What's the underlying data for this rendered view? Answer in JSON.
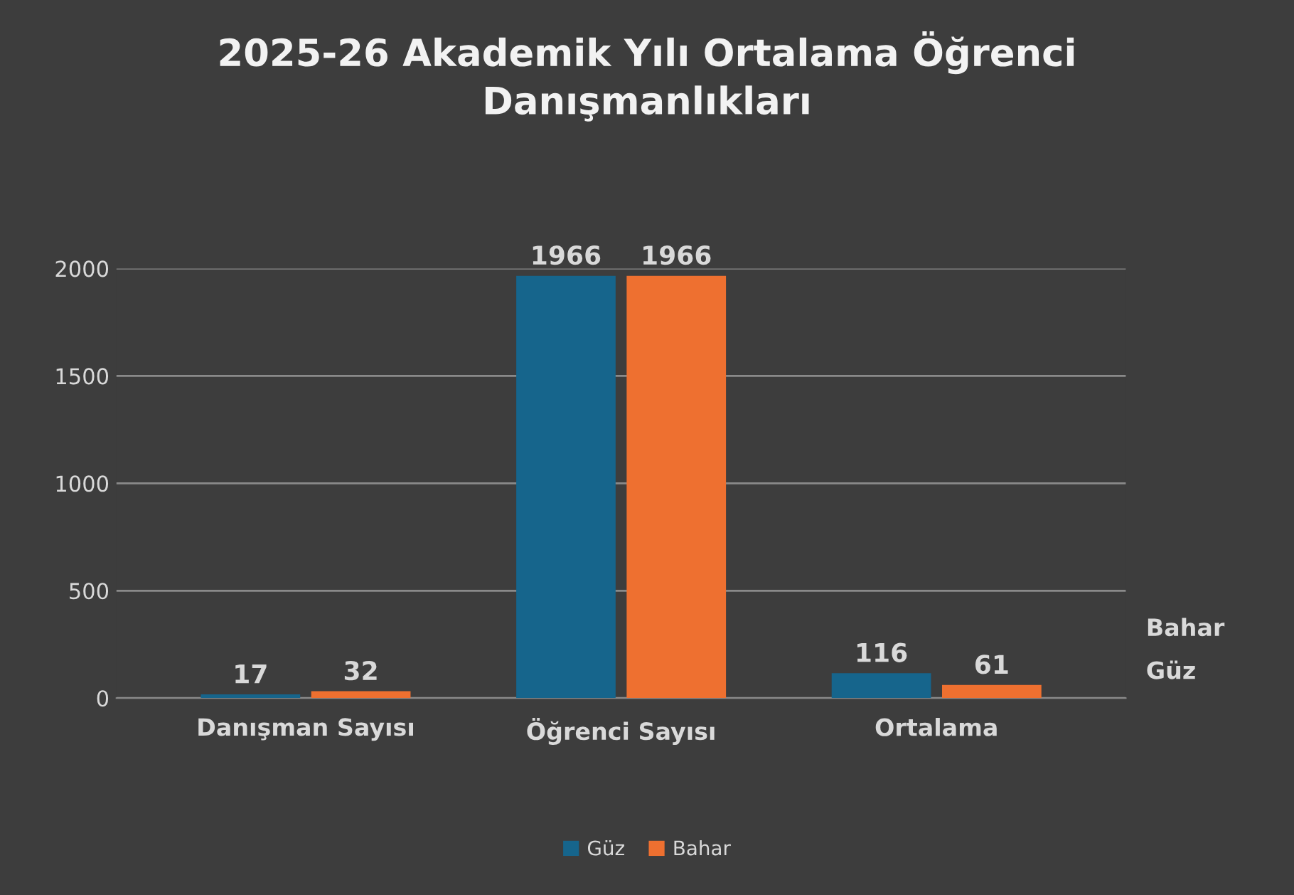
{
  "chart_data": {
    "type": "bar",
    "title": "2025-26 Akademik Yılı Ortalama Öğrenci\nDanışmanlıkları",
    "categories": [
      "Danışman Sayısı",
      "Öğrenci Sayısı",
      "Ortalama"
    ],
    "series": [
      {
        "name": "Güz",
        "color": "#16658c",
        "values": [
          17,
          1966,
          116
        ]
      },
      {
        "name": "Bahar",
        "color": "#ee7030",
        "values": [
          32,
          1966,
          61
        ]
      }
    ],
    "ylim": [
      0,
      2000
    ],
    "yticks": [
      0,
      500,
      1000,
      1500,
      2000
    ],
    "grid": "y",
    "legend": "bottom",
    "data_labels": true
  }
}
